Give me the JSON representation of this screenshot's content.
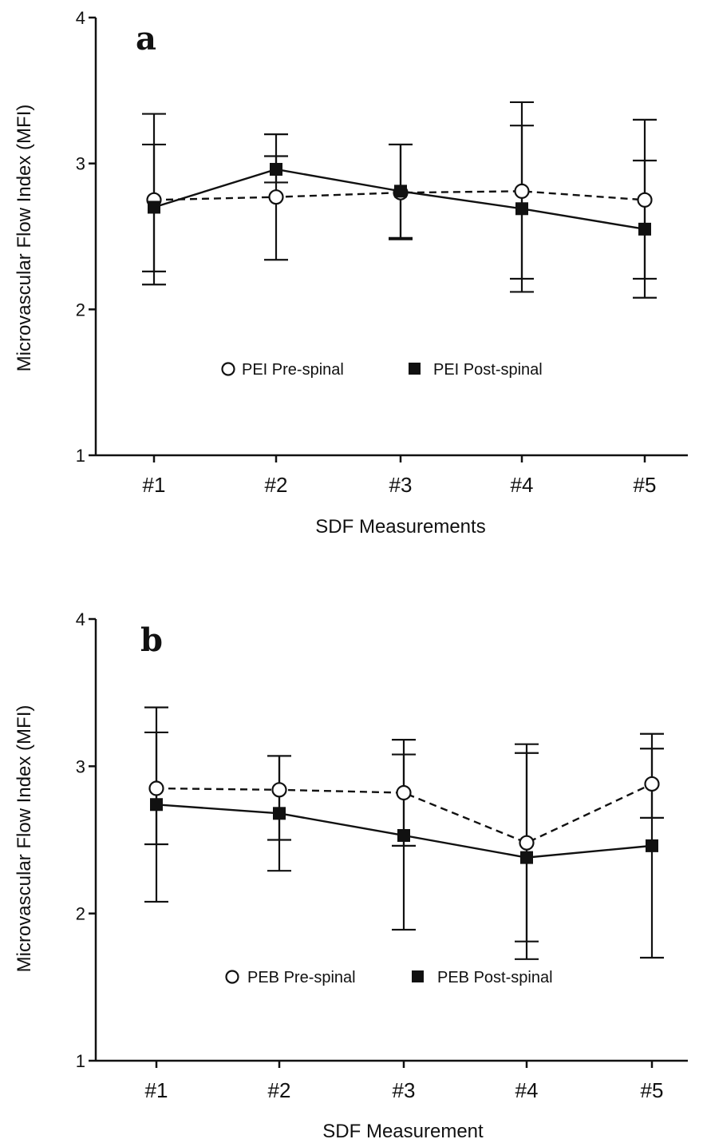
{
  "chart_data": [
    {
      "type": "line",
      "panel_label": "a",
      "categories": [
        "#1",
        "#2",
        "#3",
        "#4",
        "#5"
      ],
      "xlabel": "SDF Measurements",
      "ylabel": "Microvascular Flow Index (MFI)",
      "ylim": [
        1,
        4
      ],
      "yticks": [
        "1",
        "2",
        "3",
        "4"
      ],
      "grid": false,
      "legend_position": "center",
      "series": [
        {
          "name": "PEI Pre-spinal",
          "marker": "open-circle",
          "line": "dashed",
          "values": [
            2.75,
            2.77,
            2.8,
            2.81,
            2.75
          ],
          "error_low": [
            2.26,
            2.34,
            2.49,
            2.21,
            2.21
          ],
          "error_high": [
            3.13,
            3.2,
            3.13,
            3.42,
            3.3
          ]
        },
        {
          "name": "PEI Post-spinal",
          "marker": "filled-square",
          "line": "solid",
          "values": [
            2.7,
            2.96,
            2.81,
            2.69,
            2.55
          ],
          "error_low": [
            2.17,
            2.87,
            2.48,
            2.12,
            2.08
          ],
          "error_high": [
            3.34,
            3.05,
            3.13,
            3.26,
            3.02
          ]
        }
      ]
    },
    {
      "type": "line",
      "panel_label": "b",
      "categories": [
        "#1",
        "#2",
        "#3",
        "#4",
        "#5"
      ],
      "xlabel": "SDF Measurement",
      "ylabel": "Microvascular Flow Index (MFI)",
      "ylim": [
        1,
        4
      ],
      "yticks": [
        "1",
        "2",
        "3",
        "4"
      ],
      "grid": false,
      "legend_position": "bottom-center",
      "series": [
        {
          "name": "PEB Pre-spinal",
          "marker": "open-circle",
          "line": "dashed",
          "values": [
            2.85,
            2.84,
            2.82,
            2.48,
            2.88
          ],
          "error_low": [
            2.47,
            2.5,
            2.46,
            1.81,
            2.65
          ],
          "error_high": [
            3.23,
            3.07,
            3.18,
            3.15,
            3.12
          ]
        },
        {
          "name": "PEB Post-spinal",
          "marker": "filled-square",
          "line": "solid",
          "values": [
            2.74,
            2.68,
            2.53,
            2.38,
            2.46
          ],
          "error_low": [
            2.08,
            2.29,
            1.89,
            1.69,
            1.7
          ],
          "error_high": [
            3.4,
            3.07,
            3.08,
            3.09,
            3.22
          ]
        }
      ]
    }
  ]
}
